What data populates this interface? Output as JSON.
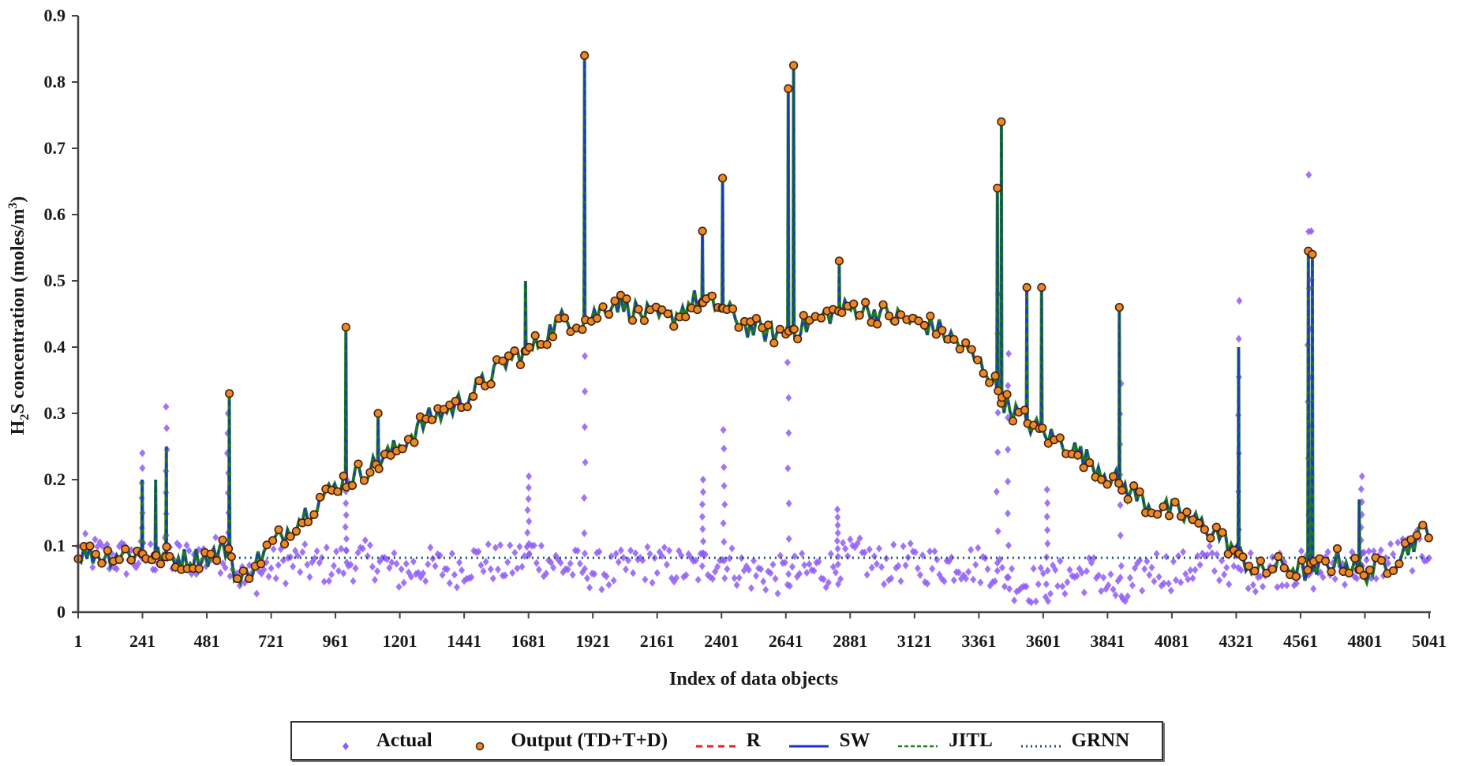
{
  "chart_data": {
    "type": "scatter",
    "title": "",
    "xlabel": "Index of data objects",
    "ylabel": "H2S concentration (moles/m3)",
    "ylabel_parts": {
      "main": "H",
      "sub": "2",
      "mid": "S concentration (moles/m",
      "sup": "3",
      "end": ")"
    },
    "xlim": [
      1,
      5041
    ],
    "ylim": [
      0,
      0.9
    ],
    "x_ticks": [
      1,
      241,
      481,
      721,
      961,
      1201,
      1441,
      1681,
      1921,
      2161,
      2401,
      2641,
      2881,
      3121,
      3361,
      3601,
      3841,
      4081,
      4321,
      4561,
      4801,
      5041
    ],
    "x_tick_labels": [
      "1",
      "241",
      "481",
      "721",
      "961",
      "1201",
      "1441",
      "1681",
      "1921",
      "2161",
      "2401",
      "2641",
      "2881",
      "3121",
      "3361",
      "3601",
      "3841",
      "4081",
      "4321",
      "4561",
      "4801",
      "5041"
    ],
    "y_ticks": [
      0,
      0.1,
      0.2,
      0.3,
      0.4,
      0.5,
      0.6,
      0.7,
      0.8,
      0.9
    ],
    "y_tick_labels": [
      "0",
      "0.1",
      "0.2",
      "0.3",
      "0.4",
      "0.5",
      "0.6",
      "0.7",
      "0.8",
      "0.9"
    ],
    "grid": false,
    "legend_position": "bottom",
    "series": [
      {
        "name": "Actual",
        "style": "diamond-markers",
        "color": "#8f5cf7",
        "baseline_keyframes": {
          "x": [
            1,
            100,
            200,
            300,
            400,
            500,
            560,
            620,
            700,
            800,
            900,
            1000,
            1100,
            1200,
            1300,
            1400,
            1500,
            1600,
            1700,
            1800,
            1900,
            2000,
            2100,
            2200,
            2300,
            2400,
            2500,
            2600,
            2700,
            2800,
            2900,
            3000,
            3100,
            3200,
            3300,
            3400,
            3500,
            3600,
            3700,
            3800,
            3900,
            4000,
            4100,
            4200,
            4300,
            4400,
            4500,
            4600,
            4700,
            4800,
            4900,
            5041
          ],
          "y": [
            0.09,
            0.085,
            0.08,
            0.085,
            0.08,
            0.085,
            0.09,
            0.045,
            0.065,
            0.075,
            0.07,
            0.075,
            0.08,
            0.06,
            0.07,
            0.065,
            0.08,
            0.07,
            0.09,
            0.07,
            0.065,
            0.06,
            0.075,
            0.07,
            0.065,
            0.08,
            0.06,
            0.055,
            0.06,
            0.065,
            0.085,
            0.07,
            0.075,
            0.07,
            0.075,
            0.07,
            0.045,
            0.04,
            0.055,
            0.06,
            0.02,
            0.07,
            0.06,
            0.075,
            0.07,
            0.06,
            0.07,
            0.06,
            0.07,
            0.07,
            0.08,
            0.1
          ]
        },
        "spikes": [
          {
            "x": 240,
            "y": 0.24
          },
          {
            "x": 330,
            "y": 0.31
          },
          {
            "x": 560,
            "y": 0.3
          },
          {
            "x": 1000,
            "y": 0.2
          },
          {
            "x": 1680,
            "y": 0.205
          },
          {
            "x": 1890,
            "y": 0.44
          },
          {
            "x": 2330,
            "y": 0.2
          },
          {
            "x": 2410,
            "y": 0.275
          },
          {
            "x": 2650,
            "y": 0.43
          },
          {
            "x": 2835,
            "y": 0.155
          },
          {
            "x": 3430,
            "y": 0.48
          },
          {
            "x": 3470,
            "y": 0.39
          },
          {
            "x": 3615,
            "y": 0.185
          },
          {
            "x": 3890,
            "y": 0.345
          },
          {
            "x": 4330,
            "y": 0.47
          },
          {
            "x": 4590,
            "y": 0.66
          },
          {
            "x": 4600,
            "y": 0.575
          },
          {
            "x": 4790,
            "y": 0.205
          }
        ]
      },
      {
        "name": "Output (TD+T+D)",
        "style": "circle-markers",
        "color": "#e8892a",
        "edge_color": "#4a1e08",
        "trend_keyframes": {
          "x": [
            1,
            100,
            200,
            300,
            400,
            500,
            560,
            600,
            650,
            720,
            800,
            900,
            1000,
            1100,
            1200,
            1300,
            1400,
            1500,
            1600,
            1700,
            1800,
            1900,
            2000,
            2100,
            2200,
            2300,
            2400,
            2500,
            2600,
            2700,
            2800,
            2900,
            3000,
            3100,
            3200,
            3300,
            3400,
            3450,
            3500,
            3600,
            3700,
            3800,
            3900,
            4000,
            4100,
            4200,
            4250,
            4300,
            4400,
            4500,
            4600,
            4700,
            4800,
            4900,
            5041
          ],
          "y": [
            0.09,
            0.085,
            0.09,
            0.085,
            0.08,
            0.085,
            0.1,
            0.04,
            0.07,
            0.1,
            0.13,
            0.17,
            0.2,
            0.22,
            0.25,
            0.29,
            0.31,
            0.34,
            0.38,
            0.4,
            0.44,
            0.44,
            0.47,
            0.45,
            0.44,
            0.47,
            0.46,
            0.43,
            0.42,
            0.43,
            0.45,
            0.46,
            0.45,
            0.44,
            0.43,
            0.4,
            0.36,
            0.32,
            0.3,
            0.27,
            0.25,
            0.22,
            0.19,
            0.16,
            0.15,
            0.13,
            0.12,
            0.1,
            0.06,
            0.07,
            0.06,
            0.08,
            0.06,
            0.075,
            0.13
          ]
        },
        "spikes": [
          {
            "x": 240,
            "y": 0.2
          },
          {
            "x": 290,
            "y": 0.2
          },
          {
            "x": 330,
            "y": 0.25
          },
          {
            "x": 565,
            "y": 0.33
          },
          {
            "x": 1000,
            "y": 0.43
          },
          {
            "x": 1120,
            "y": 0.3
          },
          {
            "x": 1670,
            "y": 0.5
          },
          {
            "x": 1890,
            "y": 0.84
          },
          {
            "x": 2330,
            "y": 0.575
          },
          {
            "x": 2405,
            "y": 0.655
          },
          {
            "x": 2650,
            "y": 0.79
          },
          {
            "x": 2670,
            "y": 0.825
          },
          {
            "x": 2840,
            "y": 0.53
          },
          {
            "x": 3430,
            "y": 0.64
          },
          {
            "x": 3445,
            "y": 0.74
          },
          {
            "x": 3540,
            "y": 0.49
          },
          {
            "x": 3595,
            "y": 0.49
          },
          {
            "x": 3885,
            "y": 0.46
          },
          {
            "x": 4330,
            "y": 0.4
          },
          {
            "x": 4590,
            "y": 0.545
          },
          {
            "x": 4605,
            "y": 0.54
          },
          {
            "x": 4780,
            "y": 0.17
          }
        ]
      },
      {
        "name": "R",
        "style": "dashed-line",
        "color": "#e8202a",
        "points": [
          {
            "x": 1,
            "y": 0.09
          },
          {
            "x": 1,
            "y": 0
          }
        ]
      },
      {
        "name": "SW",
        "style": "solid-line",
        "color": "#1c2fd6",
        "follows": "Output (TD+T+D)"
      },
      {
        "name": "JITL",
        "style": "dashed-line",
        "color": "#1f7a1f",
        "follows": "Output (TD+T+D)"
      },
      {
        "name": "GRNN",
        "style": "dotted-line",
        "color": "#1f4f7a",
        "points": [
          {
            "x": 560,
            "y": 0.082
          },
          {
            "x": 5041,
            "y": 0.082
          }
        ]
      }
    ]
  },
  "legend": {
    "items": [
      {
        "label": "Actual",
        "symbol": "diamond",
        "color": "#8f5cf7"
      },
      {
        "label": "Output (TD+T+D)",
        "symbol": "circle",
        "color": "#e8892a"
      },
      {
        "label": "R",
        "symbol": "dashed",
        "color": "#e8202a"
      },
      {
        "label": "SW",
        "symbol": "solid",
        "color": "#1c2fd6"
      },
      {
        "label": "JITL",
        "symbol": "dashed-fine",
        "color": "#1f7a1f"
      },
      {
        "label": "GRNN",
        "symbol": "dotted",
        "color": "#1f4f7a"
      }
    ]
  }
}
